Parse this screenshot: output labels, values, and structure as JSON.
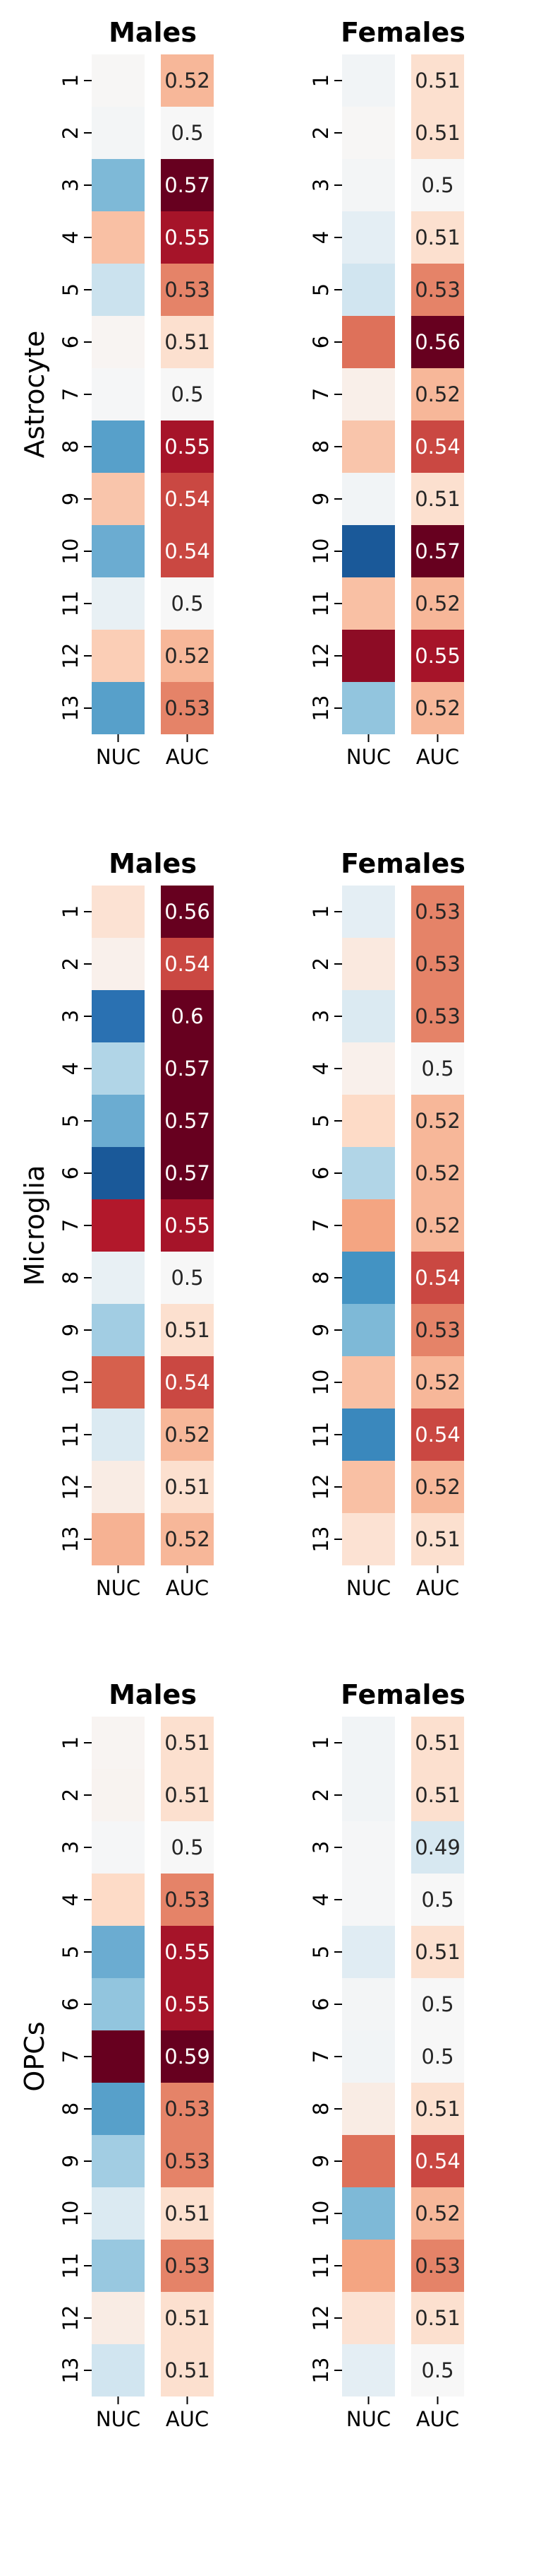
{
  "chart_data": [
    {
      "type": "heatmap",
      "row_label": "Astrocyte",
      "panels": [
        {
          "title": "Males",
          "columns": [
            "NUC",
            "AUC"
          ],
          "rows": [
            "1",
            "2",
            "3",
            "4",
            "5",
            "6",
            "7",
            "8",
            "9",
            "10",
            "11",
            "12",
            "13"
          ],
          "nuc": [
            0.01,
            -0.02,
            -0.45,
            0.3,
            -0.22,
            0.02,
            -0.01,
            -0.55,
            0.28,
            -0.5,
            -0.08,
            0.25,
            -0.55
          ],
          "auc": [
            0.52,
            0.5,
            0.57,
            0.55,
            0.53,
            0.51,
            0.5,
            0.55,
            0.54,
            0.54,
            0.5,
            0.52,
            0.53
          ]
        },
        {
          "title": "Females",
          "columns": [
            "NUC",
            "AUC"
          ],
          "rows": [
            "1",
            "2",
            "3",
            "4",
            "5",
            "6",
            "7",
            "8",
            "9",
            "10",
            "11",
            "12",
            "13"
          ],
          "nuc": [
            -0.03,
            0.01,
            -0.02,
            -0.1,
            -0.2,
            0.55,
            0.06,
            0.28,
            -0.03,
            -0.85,
            0.3,
            0.9,
            -0.4
          ],
          "auc": [
            0.51,
            0.51,
            0.5,
            0.51,
            0.53,
            0.56,
            0.52,
            0.54,
            0.51,
            0.57,
            0.52,
            0.55,
            0.52
          ]
        }
      ]
    },
    {
      "type": "heatmap",
      "row_label": "Microglia",
      "panels": [
        {
          "title": "Males",
          "columns": [
            "NUC",
            "AUC"
          ],
          "rows": [
            "1",
            "2",
            "3",
            "4",
            "5",
            "6",
            "7",
            "8",
            "9",
            "10",
            "11",
            "12",
            "13"
          ],
          "nuc": [
            0.15,
            0.05,
            -0.75,
            -0.3,
            -0.5,
            -0.85,
            0.8,
            -0.08,
            -0.35,
            0.6,
            -0.15,
            0.08,
            0.35
          ],
          "auc": [
            0.56,
            0.54,
            0.6,
            0.57,
            0.57,
            0.57,
            0.55,
            0.5,
            0.51,
            0.54,
            0.52,
            0.51,
            0.52
          ]
        },
        {
          "title": "Females",
          "columns": [
            "NUC",
            "AUC"
          ],
          "rows": [
            "1",
            "2",
            "3",
            "4",
            "5",
            "6",
            "7",
            "8",
            "9",
            "10",
            "11",
            "12",
            "13"
          ],
          "nuc": [
            -0.1,
            0.1,
            -0.15,
            0.05,
            0.2,
            -0.3,
            0.4,
            -0.6,
            -0.45,
            0.3,
            -0.65,
            0.3,
            0.15
          ],
          "auc": [
            0.53,
            0.53,
            0.53,
            0.5,
            0.52,
            0.52,
            0.52,
            0.54,
            0.53,
            0.52,
            0.54,
            0.52,
            0.51
          ]
        }
      ]
    },
    {
      "type": "heatmap",
      "row_label": "OPCs",
      "panels": [
        {
          "title": "Males",
          "columns": [
            "NUC",
            "AUC"
          ],
          "rows": [
            "1",
            "2",
            "3",
            "4",
            "5",
            "6",
            "7",
            "8",
            "9",
            "10",
            "11",
            "12",
            "13"
          ],
          "nuc": [
            0.02,
            0.03,
            -0.01,
            0.2,
            -0.5,
            -0.4,
            1.0,
            -0.55,
            -0.35,
            -0.15,
            -0.38,
            0.08,
            -0.2
          ],
          "auc": [
            0.51,
            0.51,
            0.5,
            0.53,
            0.55,
            0.55,
            0.59,
            0.53,
            0.53,
            0.51,
            0.53,
            0.51,
            0.51
          ]
        },
        {
          "title": "Females",
          "columns": [
            "NUC",
            "AUC"
          ],
          "rows": [
            "1",
            "2",
            "3",
            "4",
            "5",
            "6",
            "7",
            "8",
            "9",
            "10",
            "11",
            "12",
            "13"
          ],
          "nuc": [
            -0.03,
            -0.03,
            -0.01,
            -0.01,
            -0.12,
            -0.02,
            -0.03,
            0.08,
            0.55,
            -0.45,
            0.4,
            0.15,
            -0.1
          ],
          "auc": [
            0.51,
            0.51,
            0.49,
            0.5,
            0.51,
            0.5,
            0.5,
            0.51,
            0.54,
            0.52,
            0.53,
            0.51,
            0.5
          ]
        }
      ]
    }
  ]
}
